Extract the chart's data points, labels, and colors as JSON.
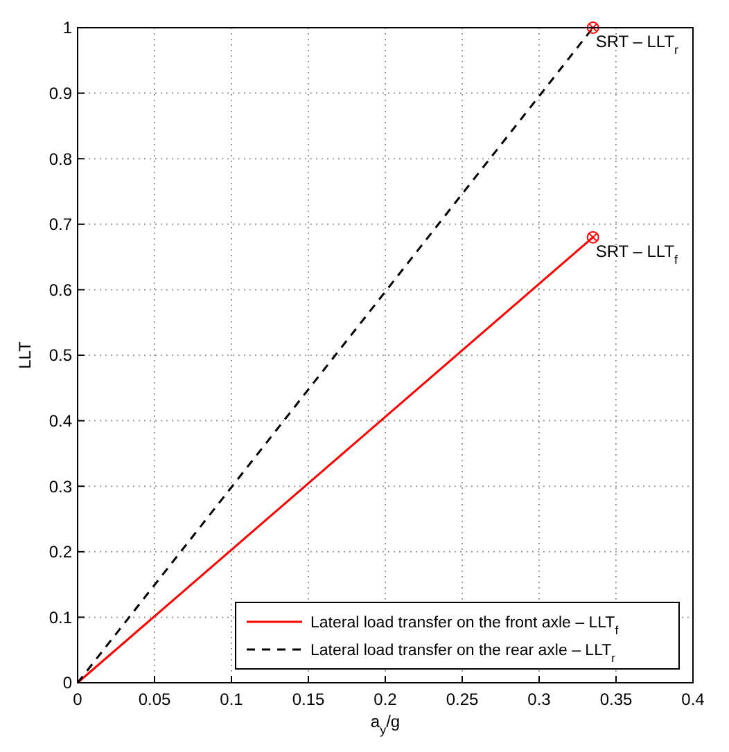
{
  "chart_data": {
    "type": "line",
    "xlabel": "a$_{y}$/g",
    "ylabel": "LLT",
    "xlim": [
      0,
      0.4
    ],
    "xticks": [
      0,
      0.05,
      0.1,
      0.15,
      0.2,
      0.25,
      0.3,
      0.35,
      0.4
    ],
    "ylim": [
      0,
      1
    ],
    "yticks": [
      0,
      0.1,
      0.2,
      0.3,
      0.4,
      0.5,
      0.6,
      0.7,
      0.8,
      0.9,
      1
    ],
    "grid": true,
    "legend": "bottom right",
    "x": [
      0,
      0.335
    ],
    "series": [
      {
        "name": "Lateral load transfer on the front axle – LLT$_{f}$",
        "color": "#ff0000",
        "values": [
          0,
          0.68
        ],
        "line_style": "solid"
      },
      {
        "name": "Lateral load transfer on the rear axle – LLT$_{r}$",
        "color": "#000000",
        "values": [
          0,
          1
        ],
        "line_style": "dashed"
      },
      {
        "type": "scatter",
        "color": "#ff0000",
        "x": [
          0.335,
          0.335
        ],
        "values": [
          0.68,
          1
        ],
        "marker": "circle"
      }
    ],
    "annotations": [
      {
        "text": "SRT – LLT$_{r}$",
        "x": 0.335,
        "y": 1
      },
      {
        "text": "SRT – LLT$_{f}$",
        "x": 0.335,
        "y": 0.68
      }
    ]
  }
}
